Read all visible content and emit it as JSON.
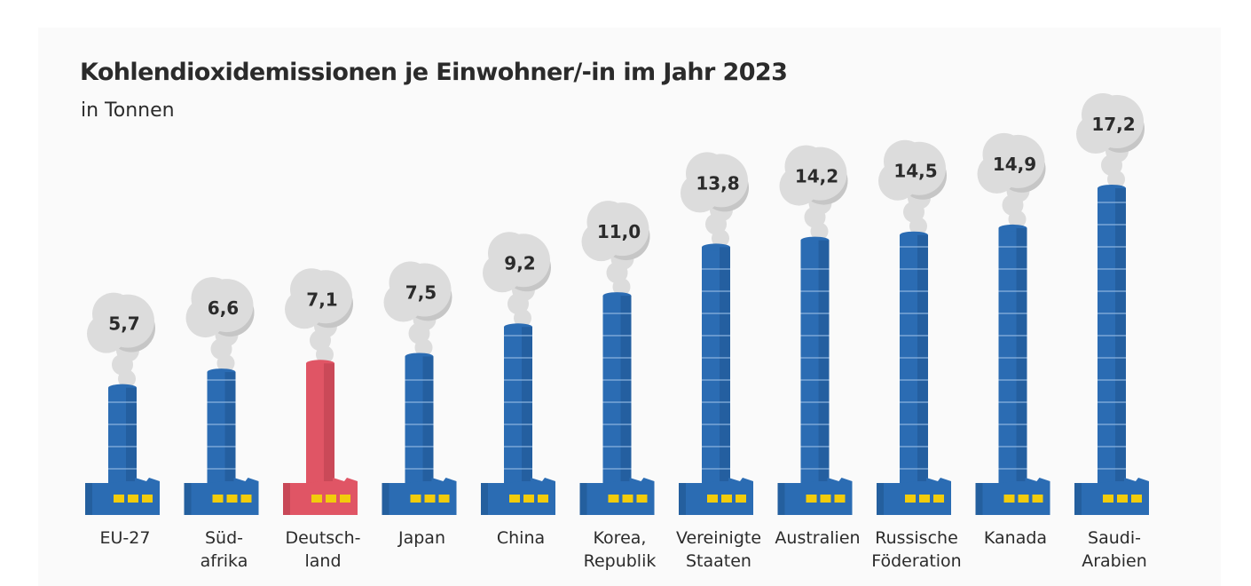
{
  "chart_data": {
    "type": "bar",
    "title": "Kohlendioxidemissionen je Einwohner/-in im Jahr 2023",
    "subtitle": "in Tonnen",
    "xlabel": "",
    "ylabel": "in Tonnen",
    "grid": false,
    "ylim": [
      0,
      17.2
    ],
    "categories": [
      [
        "EU-27"
      ],
      [
        "Süd-",
        "afrika"
      ],
      [
        "Deutsch-",
        "land"
      ],
      [
        "Japan"
      ],
      [
        "China"
      ],
      [
        "Korea,",
        "Republik"
      ],
      [
        "Vereinigte",
        "Staaten"
      ],
      [
        "Australien"
      ],
      [
        "Russische",
        "Föderation"
      ],
      [
        "Kanada"
      ],
      [
        "Saudi-",
        "Arabien"
      ]
    ],
    "values": [
      5.7,
      6.6,
      7.1,
      7.5,
      9.2,
      11.0,
      13.8,
      14.2,
      14.5,
      14.9,
      17.2
    ],
    "value_labels": [
      "5,7",
      "6,6",
      "7,1",
      "7,5",
      "9,2",
      "11,0",
      "13,8",
      "14,2",
      "14,5",
      "14,9",
      "17,2"
    ],
    "highlight": "Deutschland",
    "colors": {
      "bar": "#2b6cb3",
      "bar_shadow": "#1f5690",
      "highlight": "#e05565",
      "highlight_shadow": "#b8404f",
      "window": "#f2cc0c",
      "smoke": "#dcdcdc",
      "smoke_shadow": "#c6c6c6",
      "text": "#2b2b2b"
    }
  }
}
